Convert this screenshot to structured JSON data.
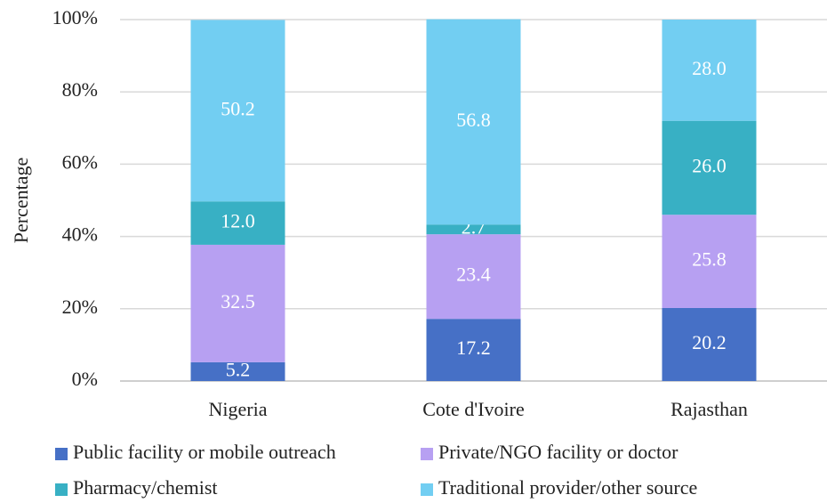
{
  "chart_data": {
    "type": "stacked_bar",
    "y_label": "Percentage",
    "categories": [
      "Nigeria",
      "Cote d'Ivoire",
      "Rajasthan"
    ],
    "series": [
      {
        "name": "Public facility or mobile outreach",
        "color": "#4670c6",
        "values": [
          5.2,
          17.2,
          20.2
        ],
        "value_labels": [
          "5.2",
          "17.2",
          "20.2"
        ]
      },
      {
        "name": "Private/NGO facility or doctor",
        "color": "#b7a0f2",
        "values": [
          32.5,
          23.4,
          25.8
        ],
        "value_labels": [
          "32.5",
          "23.4",
          "25.8"
        ]
      },
      {
        "name": "Pharmacy/chemist",
        "color": "#38b0c4",
        "values": [
          12.0,
          2.7,
          26.0
        ],
        "value_labels": [
          "12.0",
          "2.7",
          "26.0"
        ]
      },
      {
        "name": "Traditional provider/other source",
        "color": "#72cef2",
        "values": [
          50.2,
          56.8,
          28.0
        ],
        "value_labels": [
          "50.2",
          "56.8",
          "28.0"
        ]
      }
    ],
    "ylim": [
      0,
      100
    ],
    "yticks": [
      {
        "value": 0,
        "label": "0%"
      },
      {
        "value": 20,
        "label": "20%"
      },
      {
        "value": 40,
        "label": "40%"
      },
      {
        "value": 60,
        "label": "60%"
      },
      {
        "value": 80,
        "label": "80%"
      },
      {
        "value": 100,
        "label": "100%"
      }
    ],
    "grid": true
  }
}
